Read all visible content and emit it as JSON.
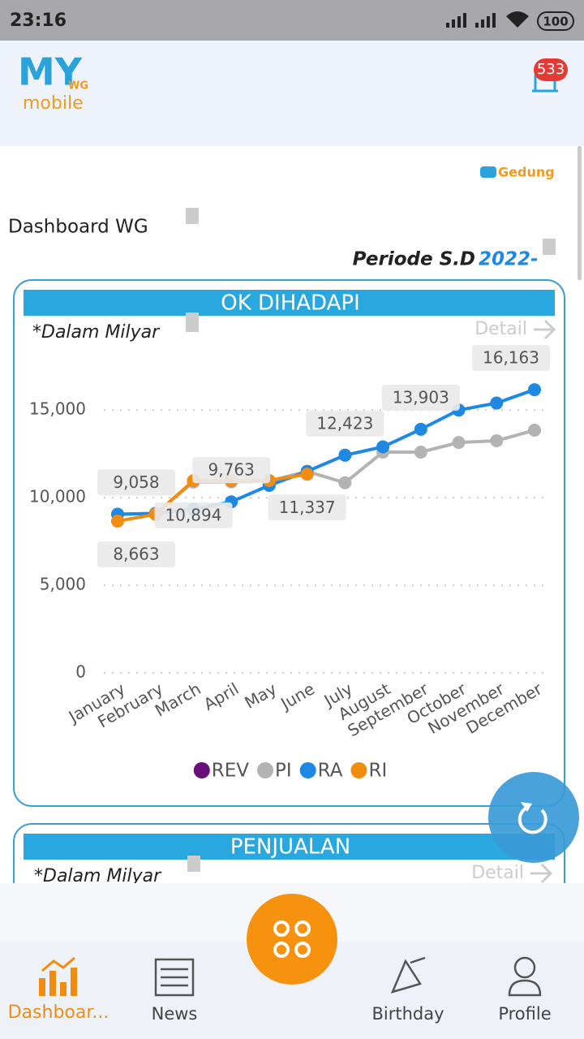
{
  "status_bar": {
    "time": "23:16",
    "battery": "100"
  },
  "header": {
    "logo_main": "MY",
    "logo_sub": "WG",
    "logo_text": "mobile",
    "notification_badge": "533"
  },
  "brand": "Gedung",
  "page_title": "Dashboard WG",
  "period_label": "Periode S.D",
  "period_year": "2022-",
  "cards": [
    {
      "title": "OK DIHADAPI",
      "note": "*Dalam Milyar",
      "detail": "Detail"
    },
    {
      "title": "PENJUALAN",
      "note": "*Dalam Milyar",
      "detail": "Detail"
    }
  ],
  "chart_data": {
    "type": "line",
    "categories": [
      "January",
      "February",
      "March",
      "April",
      "May",
      "June",
      "July",
      "August",
      "September",
      "October",
      "November",
      "December"
    ],
    "ylim": [
      0,
      17000
    ],
    "yticks": [
      0,
      {
        "value": 5000,
        "label": "5,000"
      },
      {
        "value": 10000,
        "label": "10,000"
      },
      {
        "value": 15000,
        "label": "15,000"
      }
    ],
    "grid": true,
    "series": [
      {
        "name": "REV",
        "color": "#6a0f7a",
        "values": [
          null,
          null,
          null,
          null,
          null,
          null,
          null,
          null,
          null,
          null,
          null,
          null
        ]
      },
      {
        "name": "PI",
        "color": "#b3b3b3",
        "values": [
          9058,
          9100,
          10894,
          10900,
          10950,
          11500,
          10850,
          12600,
          12600,
          13150,
          13250,
          13850
        ],
        "value_labels": [
          null,
          null,
          "10,894",
          null,
          null,
          null,
          null,
          null,
          null,
          null,
          null,
          null
        ]
      },
      {
        "name": "RA",
        "color": "#1e88e5",
        "values": [
          9058,
          9100,
          9350,
          9763,
          10700,
          11500,
          12423,
          12900,
          13903,
          15000,
          15400,
          16163
        ],
        "value_labels": [
          "9,058",
          null,
          null,
          "9,763",
          null,
          null,
          "12,423",
          null,
          "13,903",
          null,
          null,
          "16,163"
        ]
      },
      {
        "name": "RI",
        "color": "#f28c0f",
        "values": [
          8663,
          9050,
          10970,
          10970,
          10980,
          11337,
          null,
          null,
          null,
          null,
          null,
          null
        ],
        "value_labels": [
          "8,663",
          null,
          null,
          null,
          null,
          "11,337",
          null,
          null,
          null,
          null,
          null,
          null
        ]
      }
    ]
  },
  "nav": [
    "Dashboar...",
    "News",
    "Birthday",
    "Profile"
  ]
}
